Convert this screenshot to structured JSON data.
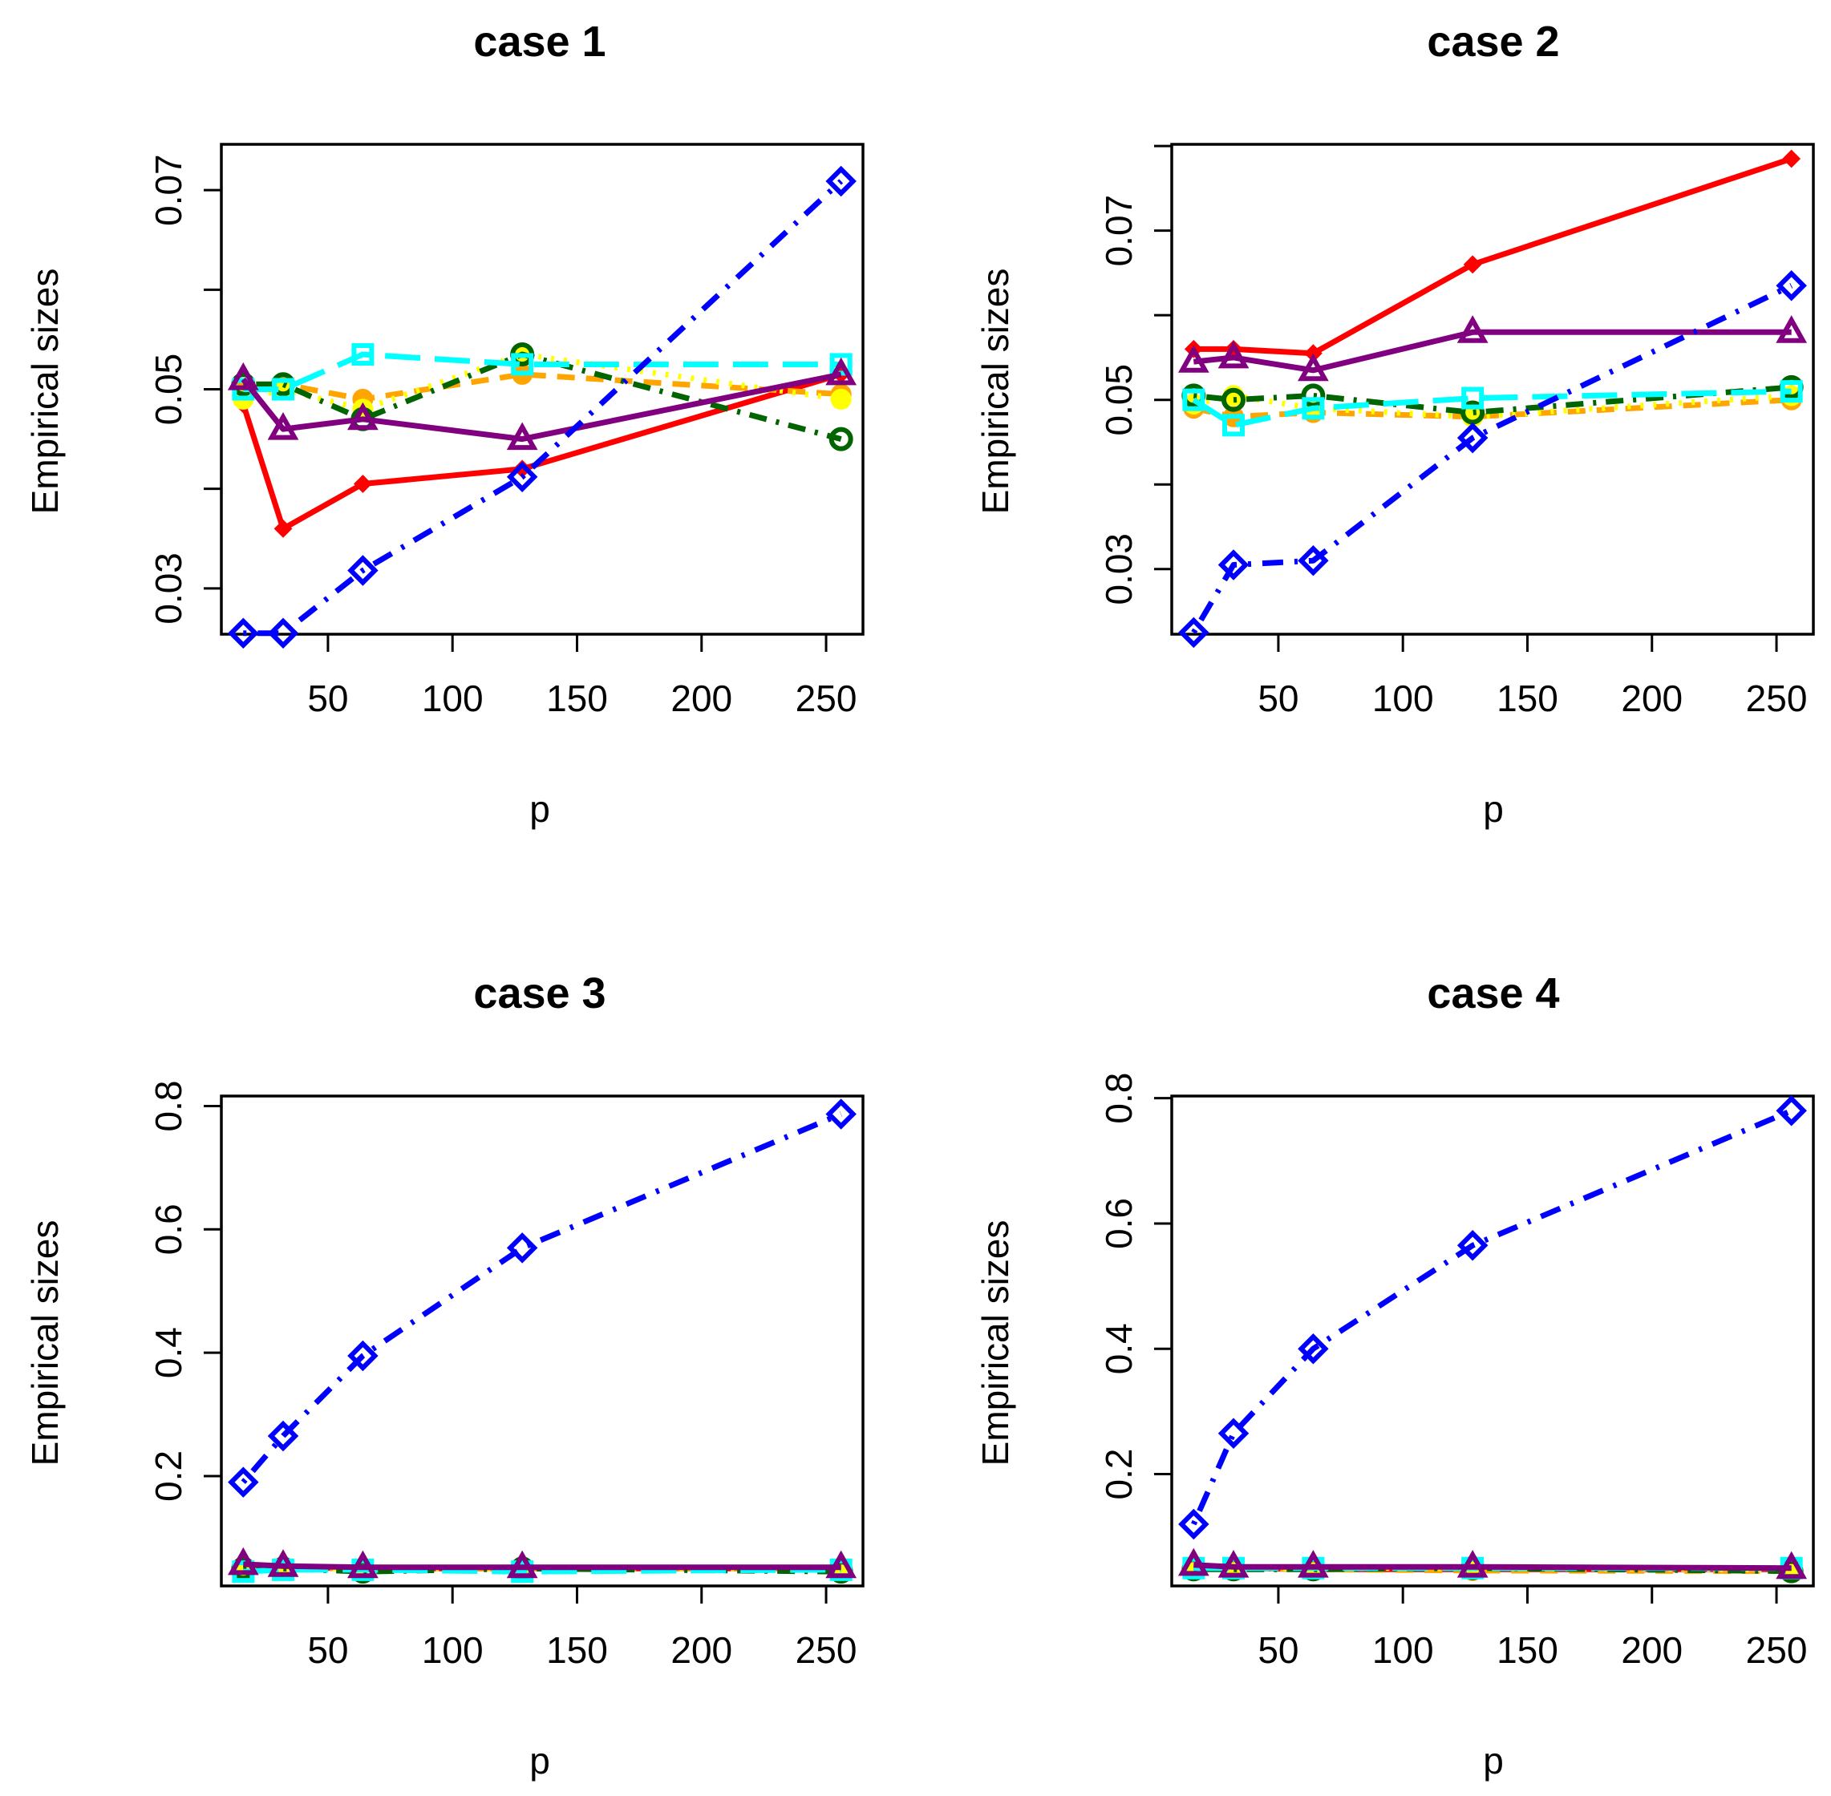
{
  "chart_data": [
    {
      "type": "line",
      "title": "case 1",
      "xlabel": "p",
      "ylabel": "Empirical sizes",
      "x": [
        16,
        32,
        64,
        128,
        256
      ],
      "xlim": [
        7.2,
        264.8
      ],
      "ylim": [
        0.0254,
        0.0746
      ],
      "xticks": [
        50,
        100,
        150,
        200,
        250
      ],
      "yticks": [
        0.03,
        0.04,
        0.05,
        0.06,
        0.07
      ],
      "yticklabels": [
        "0.03",
        "",
        "0.05",
        "",
        "0.07"
      ],
      "series": [
        {
          "name": "red",
          "color": "#ff0000",
          "values": [
            0.0485,
            0.036,
            0.0405,
            0.042,
            0.0515
          ]
        },
        {
          "name": "orange",
          "color": "#ffa500",
          "values": [
            0.05,
            0.0505,
            0.049,
            0.0515,
            0.0495
          ]
        },
        {
          "name": "yellow",
          "color": "#ffff00",
          "values": [
            0.049,
            0.05,
            0.048,
            0.0535,
            0.049
          ]
        },
        {
          "name": "darkgreen",
          "color": "#006400",
          "values": [
            0.0505,
            0.0505,
            0.047,
            0.0535,
            0.045
          ]
        },
        {
          "name": "cyan",
          "color": "#00ffff",
          "values": [
            0.05,
            0.05,
            0.0535,
            0.0525,
            0.0525
          ]
        },
        {
          "name": "purple",
          "color": "#800080",
          "values": [
            0.051,
            0.046,
            0.047,
            0.045,
            0.0515
          ]
        },
        {
          "name": "blue",
          "color": "#0000ff",
          "values": [
            0.0255,
            0.0255,
            0.0318,
            0.0412,
            0.0709
          ]
        }
      ]
    },
    {
      "type": "line",
      "title": "case 2",
      "xlabel": "p",
      "ylabel": "Empirical sizes",
      "x": [
        16,
        32,
        64,
        128,
        256
      ],
      "xlim": [
        7.2,
        264.8
      ],
      "ylim": [
        0.0223,
        0.0802
      ],
      "xticks": [
        50,
        100,
        150,
        200,
        250
      ],
      "yticks": [
        0.03,
        0.04,
        0.05,
        0.06,
        0.07,
        0.08
      ],
      "yticklabels": [
        "0.03",
        "",
        "0.05",
        "",
        "0.07",
        ""
      ],
      "series": [
        {
          "name": "red",
          "color": "#ff0000",
          "values": [
            0.056,
            0.056,
            0.0555,
            0.066,
            0.0785
          ]
        },
        {
          "name": "orange",
          "color": "#ffa500",
          "values": [
            0.049,
            0.048,
            0.0485,
            0.048,
            0.05
          ]
        },
        {
          "name": "yellow",
          "color": "#ffff00",
          "values": [
            0.0495,
            0.0505,
            0.049,
            0.048,
            0.0505
          ]
        },
        {
          "name": "darkgreen",
          "color": "#006400",
          "values": [
            0.0505,
            0.05,
            0.0505,
            0.0485,
            0.0515
          ]
        },
        {
          "name": "cyan",
          "color": "#00ffff",
          "values": [
            0.05,
            0.047,
            0.049,
            0.0502,
            0.051
          ]
        },
        {
          "name": "purple",
          "color": "#800080",
          "values": [
            0.0545,
            0.055,
            0.0535,
            0.058,
            0.058
          ]
        },
        {
          "name": "blue",
          "color": "#0000ff",
          "values": [
            0.0225,
            0.0305,
            0.031,
            0.0455,
            0.0635
          ]
        }
      ]
    },
    {
      "type": "line",
      "title": "case 3",
      "xlabel": "p",
      "ylabel": "Empirical sizes",
      "x": [
        16,
        32,
        64,
        128,
        256
      ],
      "xlim": [
        7.2,
        264.8
      ],
      "ylim": [
        0.0218,
        0.8162
      ],
      "xticks": [
        50,
        100,
        150,
        200,
        250
      ],
      "yticks": [
        0.2,
        0.4,
        0.6,
        0.8
      ],
      "yticklabels": [
        "0.2",
        "0.4",
        "0.6",
        "0.8"
      ],
      "series": [
        {
          "name": "red",
          "color": "#ff0000",
          "values": [
            0.055,
            0.052,
            0.05,
            0.05,
            0.05
          ]
        },
        {
          "name": "orange",
          "color": "#ffa500",
          "values": [
            0.052,
            0.051,
            0.05,
            0.05,
            0.05
          ]
        },
        {
          "name": "yellow",
          "color": "#ffff00",
          "values": [
            0.05,
            0.05,
            0.05,
            0.05,
            0.05
          ]
        },
        {
          "name": "darkgreen",
          "color": "#006400",
          "values": [
            0.05,
            0.05,
            0.045,
            0.05,
            0.045
          ]
        },
        {
          "name": "cyan",
          "color": "#00ffff",
          "values": [
            0.045,
            0.048,
            0.048,
            0.045,
            0.048
          ]
        },
        {
          "name": "purple",
          "color": "#800080",
          "values": [
            0.057,
            0.054,
            0.052,
            0.052,
            0.052
          ]
        },
        {
          "name": "blue",
          "color": "#0000ff",
          "values": [
            0.19,
            0.265,
            0.395,
            0.57,
            0.787
          ]
        }
      ]
    },
    {
      "type": "line",
      "title": "case 4",
      "xlabel": "p",
      "ylabel": "Empirical sizes",
      "x": [
        16,
        32,
        64,
        128,
        256
      ],
      "xlim": [
        7.2,
        264.8
      ],
      "ylim": [
        0.0215,
        0.8034
      ],
      "xticks": [
        50,
        100,
        150,
        200,
        250
      ],
      "yticks": [
        0.2,
        0.4,
        0.6,
        0.8
      ],
      "yticklabels": [
        "0.2",
        "0.4",
        "0.6",
        "0.8"
      ],
      "series": [
        {
          "name": "red",
          "color": "#ff0000",
          "values": [
            0.052,
            0.05,
            0.048,
            0.048,
            0.048
          ]
        },
        {
          "name": "orange",
          "color": "#ffa500",
          "values": [
            0.05,
            0.05,
            0.048,
            0.046,
            0.045
          ]
        },
        {
          "name": "yellow",
          "color": "#ffff00",
          "values": [
            0.05,
            0.049,
            0.05,
            0.05,
            0.048
          ]
        },
        {
          "name": "darkgreen",
          "color": "#006400",
          "values": [
            0.048,
            0.048,
            0.048,
            0.05,
            0.045
          ]
        },
        {
          "name": "cyan",
          "color": "#00ffff",
          "values": [
            0.05,
            0.05,
            0.05,
            0.05,
            0.05
          ]
        },
        {
          "name": "purple",
          "color": "#800080",
          "values": [
            0.055,
            0.052,
            0.052,
            0.052,
            0.05
          ]
        },
        {
          "name": "blue",
          "color": "#0000ff",
          "values": [
            0.12,
            0.265,
            0.4,
            0.565,
            0.78
          ]
        }
      ]
    }
  ]
}
